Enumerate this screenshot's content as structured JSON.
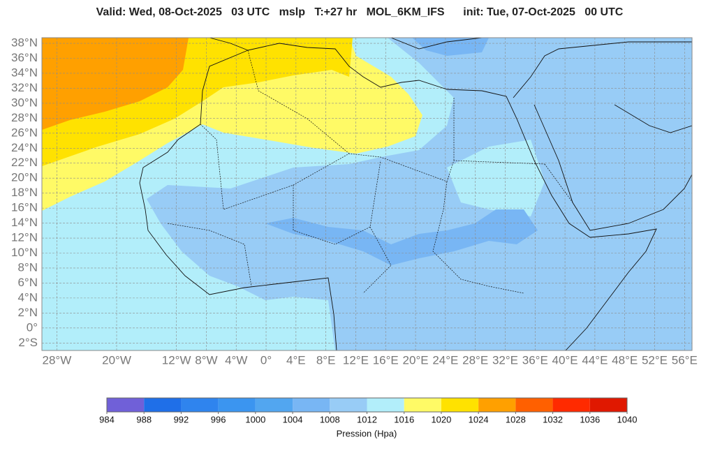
{
  "title": "Valid: Wed, 08-Oct-2025   03 UTC   mslp   T:+27 hr   MOL_6KM_IFS      init: Tue, 07-Oct-2025   00 UTC",
  "map": {
    "xlim": [
      -30,
      57
    ],
    "ylim": [
      -3,
      38.75
    ],
    "lat_ticks": [
      {
        "value": 38,
        "label": "38°N"
      },
      {
        "value": 36,
        "label": "36°N"
      },
      {
        "value": 34,
        "label": "34°N"
      },
      {
        "value": 32,
        "label": "32°N"
      },
      {
        "value": 30,
        "label": "30°N"
      },
      {
        "value": 28,
        "label": "28°N"
      },
      {
        "value": 26,
        "label": "26°N"
      },
      {
        "value": 24,
        "label": "24°N"
      },
      {
        "value": 22,
        "label": "22°N"
      },
      {
        "value": 20,
        "label": "20°N"
      },
      {
        "value": 18,
        "label": "18°N"
      },
      {
        "value": 16,
        "label": "16°N"
      },
      {
        "value": 14,
        "label": "14°N"
      },
      {
        "value": 12,
        "label": "12°N"
      },
      {
        "value": 10,
        "label": "10°N"
      },
      {
        "value": 8,
        "label": "8°N"
      },
      {
        "value": 6,
        "label": "6°N"
      },
      {
        "value": 4,
        "label": "4°N"
      },
      {
        "value": 2,
        "label": "2°N"
      },
      {
        "value": 0,
        "label": "0°"
      },
      {
        "value": -2,
        "label": "2°S"
      }
    ],
    "lon_ticks": [
      {
        "value": -28,
        "label": "28°W"
      },
      {
        "value": -20,
        "label": "20°W"
      },
      {
        "value": -12,
        "label": "12°W"
      },
      {
        "value": -8,
        "label": "8°W"
      },
      {
        "value": -4,
        "label": "4°W"
      },
      {
        "value": 0,
        "label": "0°"
      },
      {
        "value": 4,
        "label": "4°E"
      },
      {
        "value": 8,
        "label": "8°E"
      },
      {
        "value": 12,
        "label": "12°E"
      },
      {
        "value": 16,
        "label": "16°E"
      },
      {
        "value": 20,
        "label": "20°E"
      },
      {
        "value": 24,
        "label": "24°E"
      },
      {
        "value": 28,
        "label": "28°E"
      },
      {
        "value": 32,
        "label": "32°E"
      },
      {
        "value": 36,
        "label": "36°E"
      },
      {
        "value": 40,
        "label": "40°E"
      },
      {
        "value": 44,
        "label": "44°E"
      },
      {
        "value": 48,
        "label": "48°E"
      },
      {
        "value": 52,
        "label": "52°E"
      },
      {
        "value": 56,
        "label": "56°E"
      }
    ]
  },
  "colorbar": {
    "ticks": [
      984,
      988,
      992,
      996,
      1000,
      1004,
      1008,
      1012,
      1016,
      1020,
      1024,
      1028,
      1032,
      1036,
      1040
    ],
    "colors": [
      "#7060d8",
      "#1f6fe8",
      "#2f84ee",
      "#3b95f0",
      "#52a6f0",
      "#78b6f4",
      "#98ccf6",
      "#b2eefa",
      "#fffa66",
      "#ffe200",
      "#ffa000",
      "#ff6000",
      "#ff2a00",
      "#e01800"
    ],
    "label": "Pression (Hpa)"
  }
}
